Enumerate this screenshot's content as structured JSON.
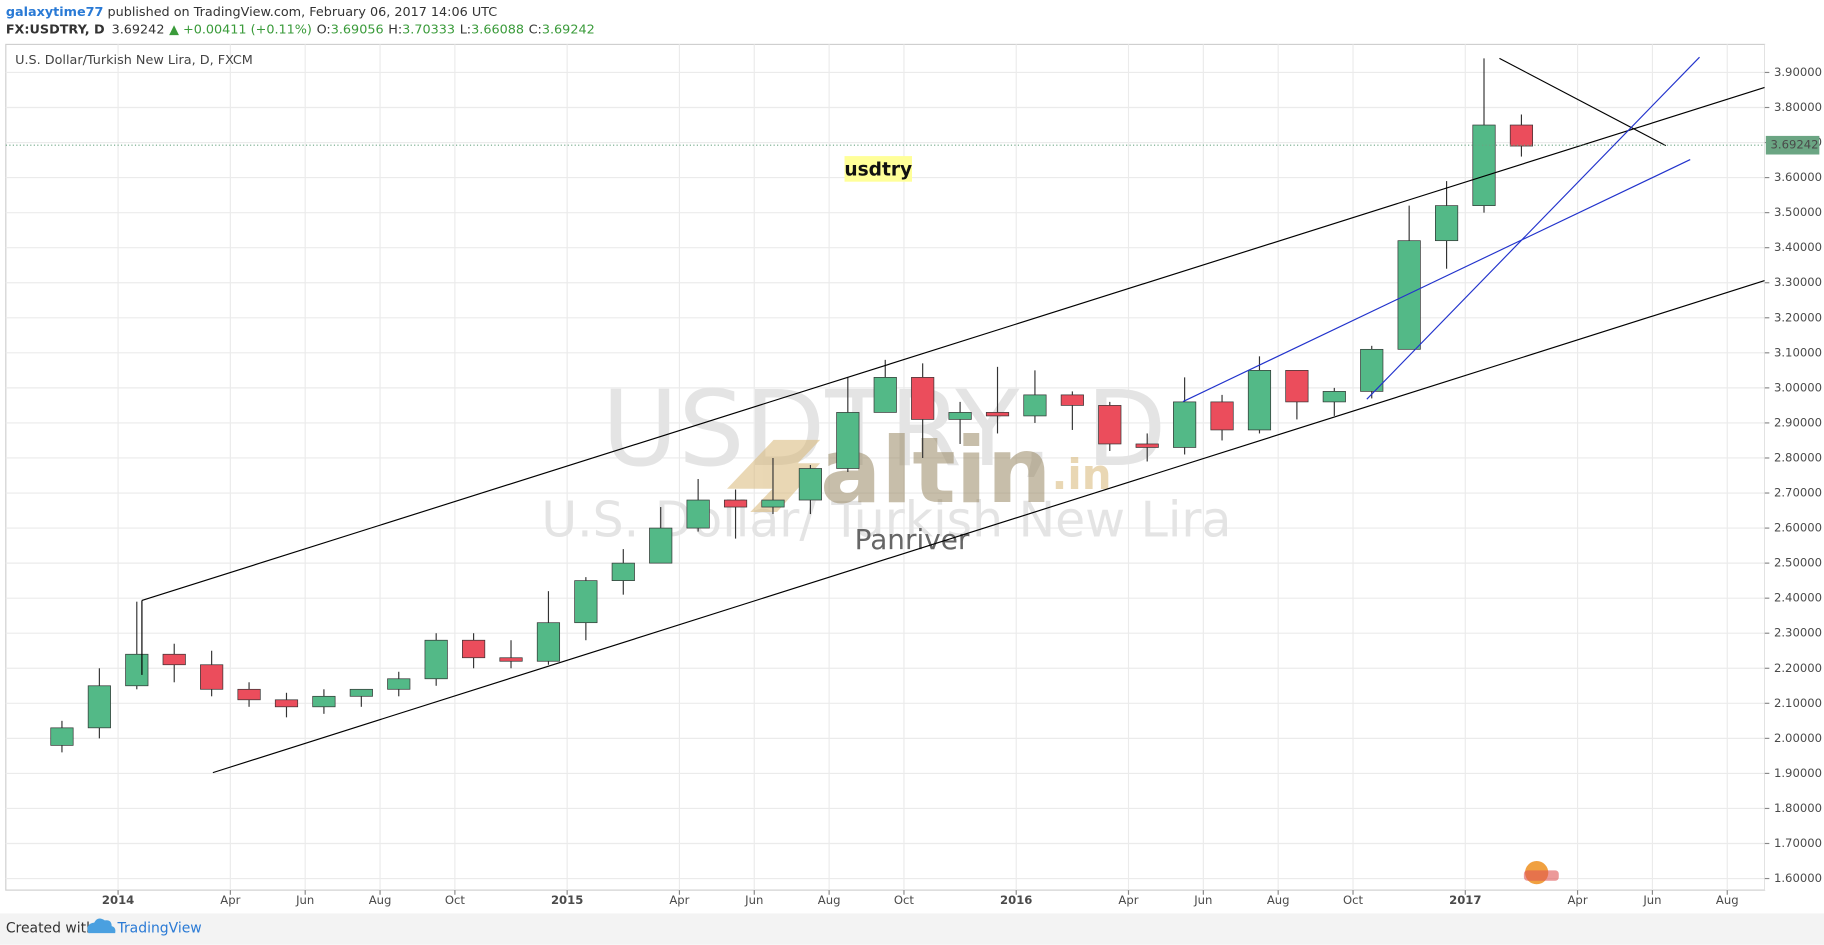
{
  "header": {
    "author": "galaxytime77",
    "published": " published on TradingView.com, February 06, 2017 14:06 UTC",
    "symbol": "FX:USDTRY, D",
    "last": "3.69242",
    "change": "▲ +0.00411 (+0.11%)",
    "ohlc": [
      {
        "label": "O:",
        "value": "3.69056"
      },
      {
        "label": "H:",
        "value": "3.70333"
      },
      {
        "label": "L:",
        "value": "3.66088"
      },
      {
        "label": "C:",
        "value": "3.69242"
      }
    ]
  },
  "chart_data": {
    "type": "candlestick",
    "title": "U.S. Dollar/Turkish New Lira, D, FXCM",
    "watermark": "USDTRY, D",
    "watermark_subtitle": "U.S. Dollar/ Turkish New Lira",
    "annotations": {
      "logo": "altin",
      "logo_suffix": ".in",
      "author": "Panriver",
      "note": "usdtry"
    },
    "x": [
      "2013-11",
      "2013-12",
      "2014-01",
      "2014-02",
      "2014-03",
      "2014-04",
      "2014-05",
      "2014-06",
      "2014-07",
      "2014-08",
      "2014-09",
      "2014-10",
      "2014-11",
      "2014-12",
      "2015-01",
      "2015-02",
      "2015-03",
      "2015-04",
      "2015-05",
      "2015-06",
      "2015-07",
      "2015-08",
      "2015-09",
      "2015-10",
      "2015-11",
      "2015-12",
      "2016-01",
      "2016-02",
      "2016-03",
      "2016-04",
      "2016-05",
      "2016-06",
      "2016-07",
      "2016-08",
      "2016-09",
      "2016-10",
      "2016-11",
      "2016-12",
      "2017-01",
      "2017-02"
    ],
    "open": [
      1.98,
      2.03,
      2.15,
      2.24,
      2.21,
      2.14,
      2.11,
      2.09,
      2.12,
      2.14,
      2.17,
      2.28,
      2.23,
      2.22,
      2.33,
      2.45,
      2.5,
      2.6,
      2.68,
      2.66,
      2.68,
      2.77,
      2.93,
      3.03,
      2.91,
      2.93,
      2.92,
      2.98,
      2.95,
      2.84,
      2.83,
      2.96,
      2.88,
      3.05,
      2.96,
      2.99,
      3.11,
      3.42,
      3.52,
      3.75
    ],
    "high": [
      2.05,
      2.2,
      2.39,
      2.27,
      2.25,
      2.16,
      2.13,
      2.14,
      2.14,
      2.19,
      2.3,
      2.3,
      2.28,
      2.42,
      2.46,
      2.54,
      2.66,
      2.74,
      2.71,
      2.8,
      2.78,
      3.03,
      3.08,
      3.07,
      2.96,
      3.06,
      3.05,
      2.99,
      2.96,
      2.87,
      3.03,
      2.98,
      3.09,
      3.05,
      3.0,
      3.12,
      3.52,
      3.59,
      3.94,
      3.78
    ],
    "low": [
      1.96,
      2.0,
      2.14,
      2.16,
      2.12,
      2.09,
      2.06,
      2.07,
      2.09,
      2.12,
      2.15,
      2.2,
      2.2,
      2.21,
      2.28,
      2.41,
      2.5,
      2.59,
      2.57,
      2.64,
      2.64,
      2.76,
      2.93,
      2.8,
      2.84,
      2.87,
      2.9,
      2.88,
      2.82,
      2.79,
      2.81,
      2.85,
      2.87,
      2.91,
      2.92,
      2.97,
      3.11,
      3.34,
      3.5,
      3.66
    ],
    "close": [
      2.03,
      2.15,
      2.24,
      2.21,
      2.14,
      2.11,
      2.09,
      2.12,
      2.14,
      2.17,
      2.28,
      2.23,
      2.22,
      2.33,
      2.45,
      2.5,
      2.6,
      2.68,
      2.66,
      2.68,
      2.77,
      2.93,
      3.03,
      2.91,
      2.93,
      2.92,
      2.98,
      2.95,
      2.84,
      2.83,
      2.96,
      2.88,
      3.05,
      2.96,
      2.99,
      3.11,
      3.42,
      3.52,
      3.75,
      3.69
    ],
    "up_color": "#53b987",
    "down_color": "#eb4d5c",
    "last_price": 3.69242,
    "last_color": "#6ba583",
    "xlim": [
      "2013-10",
      "2017-09"
    ],
    "xticks": [
      {
        "value": "2014-01",
        "label": "2014"
      },
      {
        "value": "2014-04",
        "label": "Apr"
      },
      {
        "value": "2014-06",
        "label": "Jun"
      },
      {
        "value": "2014-08",
        "label": "Aug"
      },
      {
        "value": "2014-10",
        "label": "Oct"
      },
      {
        "value": "2015-01",
        "label": "2015"
      },
      {
        "value": "2015-04",
        "label": "Apr"
      },
      {
        "value": "2015-06",
        "label": "Jun"
      },
      {
        "value": "2015-08",
        "label": "Aug"
      },
      {
        "value": "2015-10",
        "label": "Oct"
      },
      {
        "value": "2016-01",
        "label": "2016"
      },
      {
        "value": "2016-04",
        "label": "Apr"
      },
      {
        "value": "2016-06",
        "label": "Jun"
      },
      {
        "value": "2016-08",
        "label": "Aug"
      },
      {
        "value": "2016-10",
        "label": "Oct"
      },
      {
        "value": "2017-01",
        "label": "2017"
      },
      {
        "value": "2017-04",
        "label": "Apr"
      },
      {
        "value": "2017-06",
        "label": "Jun"
      },
      {
        "value": "2017-08",
        "label": "Aug"
      }
    ],
    "ylim": [
      1.567,
      3.98
    ],
    "yticks": [
      {
        "value": 1.6,
        "label": "1.60000"
      },
      {
        "value": 1.7,
        "label": "1.70000"
      },
      {
        "value": 1.8,
        "label": "1.80000"
      },
      {
        "value": 1.9,
        "label": "1.90000"
      },
      {
        "value": 2.0,
        "label": "2.00000"
      },
      {
        "value": 2.1,
        "label": "2.10000"
      },
      {
        "value": 2.2,
        "label": "2.20000"
      },
      {
        "value": 2.3,
        "label": "2.30000"
      },
      {
        "value": 2.4,
        "label": "2.40000"
      },
      {
        "value": 2.5,
        "label": "2.50000"
      },
      {
        "value": 2.6,
        "label": "2.60000"
      },
      {
        "value": 2.7,
        "label": "2.70000"
      },
      {
        "value": 2.8,
        "label": "2.80000"
      },
      {
        "value": 2.9,
        "label": "2.90000"
      },
      {
        "value": 3.0,
        "label": "3.00000"
      },
      {
        "value": 3.1,
        "label": "3.10000"
      },
      {
        "value": 3.2,
        "label": "3.20000"
      },
      {
        "value": 3.3,
        "label": "3.30000"
      },
      {
        "value": 3.4,
        "label": "3.40000"
      },
      {
        "value": 3.5,
        "label": "3.50000"
      },
      {
        "value": 3.6,
        "label": "3.60000"
      },
      {
        "value": 3.7,
        "label": "3.70000"
      },
      {
        "value": 3.8,
        "label": "3.80000"
      },
      {
        "value": 3.9,
        "label": "3.90000"
      }
    ],
    "grid": true
  },
  "footer": {
    "created": "Created with",
    "brand": "TradingView"
  }
}
